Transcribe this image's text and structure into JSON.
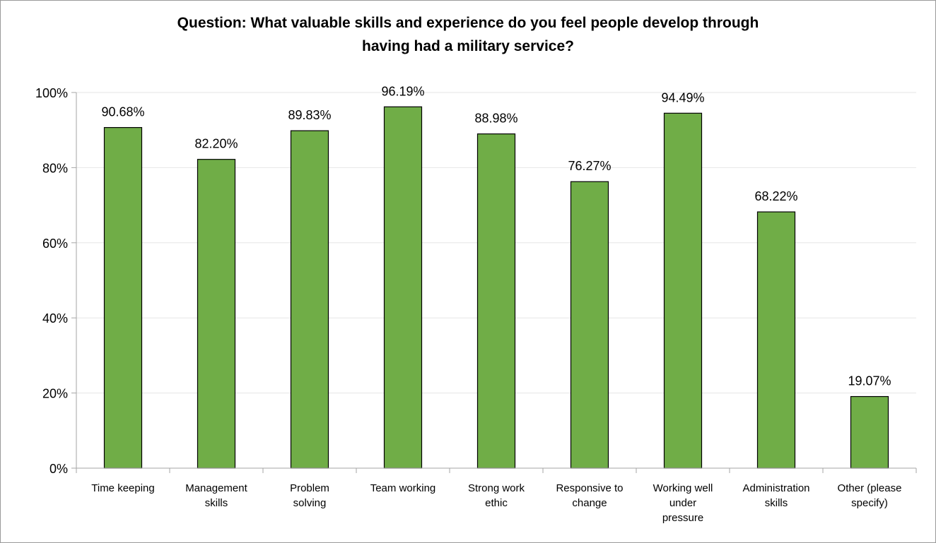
{
  "chart_data": {
    "type": "bar",
    "title_lines": [
      "Question: What valuable skills and experience do you feel people develop through",
      "having had a military service?"
    ],
    "categories": [
      [
        "Time keeping"
      ],
      [
        "Management",
        "skills"
      ],
      [
        "Problem",
        "solving"
      ],
      [
        "Team working"
      ],
      [
        "Strong work",
        "ethic"
      ],
      [
        "Responsive to",
        "change"
      ],
      [
        "Working well",
        "under",
        "pressure"
      ],
      [
        "Administration",
        "skills"
      ],
      [
        "Other (please",
        "specify)"
      ]
    ],
    "values": [
      90.68,
      82.2,
      89.83,
      96.19,
      88.98,
      76.27,
      94.49,
      68.22,
      19.07
    ],
    "value_labels": [
      "90.68%",
      "82.20%",
      "89.83%",
      "96.19%",
      "88.98%",
      "76.27%",
      "94.49%",
      "68.22%",
      "19.07%"
    ],
    "ylim": [
      0,
      100
    ],
    "yticks": [
      0,
      20,
      40,
      60,
      80,
      100
    ],
    "ytick_labels": [
      "0%",
      "20%",
      "40%",
      "60%",
      "80%",
      "100%"
    ],
    "bar_color": "#70ad47",
    "gridlines": true,
    "legend": "none"
  }
}
